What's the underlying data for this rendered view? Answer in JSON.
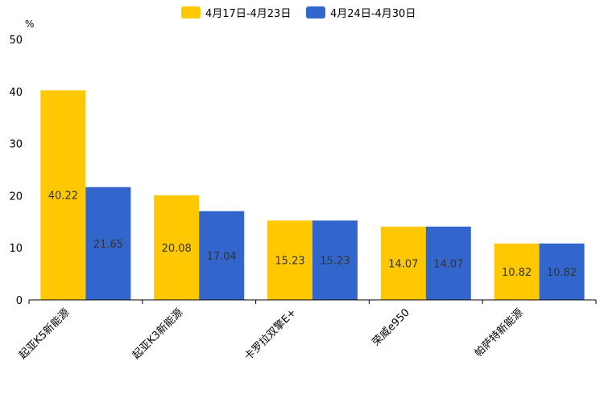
{
  "chart_data": {
    "type": "bar",
    "title": "",
    "unit": "%",
    "xlabel": "",
    "ylabel": "",
    "ylim": [
      0,
      50
    ],
    "yticks": [
      0,
      10,
      20,
      30,
      40,
      50
    ],
    "legend_position": "top-center",
    "grid": false,
    "categories": [
      "起亚K5新能源",
      "起亚K3新能源",
      "卡罗拉双擎E+",
      "荣威e950",
      "帕萨特新能源"
    ],
    "series": [
      {
        "name": "4月17日-4月23日",
        "color": "#FFC800",
        "values": [
          40.22,
          20.08,
          15.23,
          14.07,
          10.82
        ]
      },
      {
        "name": "4月24日-4月30日",
        "color": "#3366CC",
        "values": [
          21.65,
          17.04,
          15.23,
          14.07,
          10.82
        ]
      }
    ]
  }
}
